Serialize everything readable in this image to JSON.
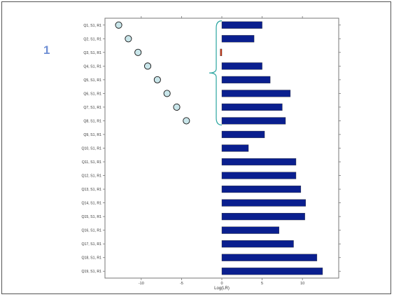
{
  "figure": {
    "marker_label": "1"
  },
  "chart_data": {
    "type": "bar",
    "orientation": "horizontal",
    "xlabel": "Log(LR)",
    "xlim": [
      -14.5,
      14.5
    ],
    "x_ticks": [
      -10,
      -5,
      0,
      5,
      10
    ],
    "grid": false,
    "categories": [
      "Q1, S1, R1",
      "Q2, S1, R1",
      "Q3, S1, R1",
      "Q4, S1, R1",
      "Q5, S1, R1",
      "Q6, S1, R1",
      "Q7, S1, R1",
      "Q8, S1, R1",
      "Q9, S1, R1",
      "Q10, S1, R1",
      "Q11, S1, R1",
      "Q12, S1, R1",
      "Q13, S1, R1",
      "Q14, S1, R1",
      "Q15, S1, R1",
      "Q16, S1, R1",
      "Q17, S1, R1",
      "Q18, S1, R1",
      "Q19, S1, R1"
    ],
    "values": [
      5.0,
      4.0,
      -0.2,
      5.0,
      6.0,
      8.5,
      7.5,
      7.9,
      5.3,
      3.3,
      9.2,
      9.2,
      9.8,
      10.4,
      10.3,
      7.1,
      8.9,
      11.8,
      12.5
    ],
    "bar_colors": {
      "positive": "#0a1f8f",
      "negative": "#cc3a1a"
    },
    "scatter": {
      "categories": [
        "Q1, S1, R1",
        "Q2, S1, R1",
        "Q3, S1, R1",
        "Q4, S1, R1",
        "Q5, S1, R1",
        "Q6, S1, R1",
        "Q7, S1, R1",
        "Q8, S1, R1"
      ],
      "x": [
        -12.8,
        -11.6,
        -10.4,
        -9.2,
        -8.0,
        -6.8,
        -5.6,
        -4.4
      ],
      "color": "#c9e6ea"
    },
    "brace": {
      "from": "Q1, S1, R1",
      "to": "Q8, S1, R1",
      "color": "#2aa5a0"
    }
  }
}
